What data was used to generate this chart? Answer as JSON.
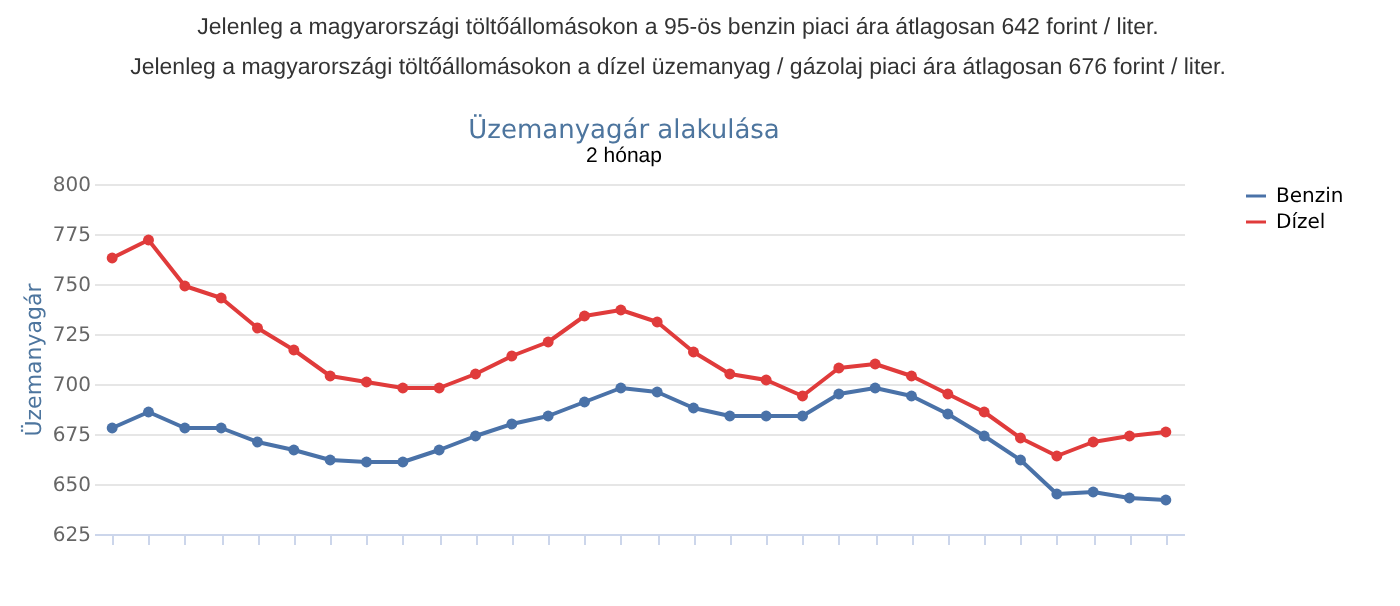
{
  "chart_data": {
    "type": "line",
    "title": "Üzemanyagár alakulása",
    "ylabel": "Üzemanyagár",
    "annotations": [
      "Jelenleg a magyarországi töltőállomásokon a 95-ös benzin piaci ára átlagosan 642 forint / liter.",
      "Jelenleg a magyarországi töltőállomásokon a dízel üzemanyag / gázolaj piaci ára átlagosan 676 forint / liter.",
      "2 hónap"
    ],
    "categories": [
      null,
      null,
      null,
      null,
      null,
      null,
      null,
      null,
      null,
      null,
      null,
      null,
      null,
      null,
      null,
      null,
      null,
      null,
      null,
      null,
      null,
      null,
      null,
      null,
      null,
      null,
      null,
      null,
      null,
      null
    ],
    "series": [
      {
        "name": "Benzin",
        "color": "#4a72a8",
        "values": [
          678,
          686,
          678,
          678,
          671,
          667,
          662,
          661,
          661,
          667,
          674,
          680,
          684,
          691,
          698,
          696,
          688,
          684,
          684,
          684,
          695,
          698,
          694,
          685,
          674,
          662,
          645,
          646,
          643,
          642
        ]
      },
      {
        "name": "Dízel",
        "color": "#e03b3b",
        "values": [
          763,
          772,
          749,
          743,
          728,
          717,
          704,
          701,
          698,
          698,
          705,
          714,
          721,
          734,
          737,
          731,
          716,
          705,
          702,
          694,
          708,
          710,
          704,
          695,
          686,
          673,
          664,
          671,
          674,
          676
        ]
      }
    ],
    "ylim": [
      625,
      800
    ],
    "yticks": [
      625,
      650,
      675,
      700,
      725,
      750,
      775,
      800
    ],
    "grid": "y",
    "legend": "right",
    "marker": "circle",
    "line_style": "solid",
    "tick_labels": "y"
  }
}
